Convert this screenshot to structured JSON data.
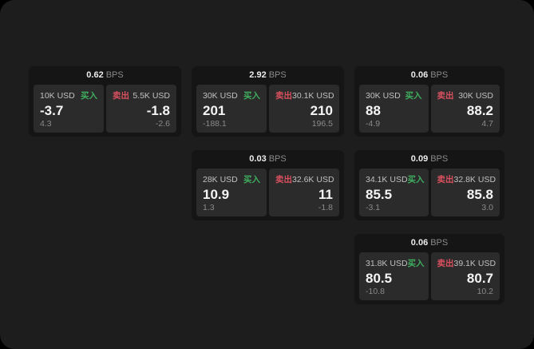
{
  "labels": {
    "bps": "BPS",
    "buy": "买入",
    "sell": "卖出"
  },
  "colors": {
    "background": "#000000",
    "surface": "#1d1d1d",
    "card_bg": "#151515",
    "panel_bg": "#2b2b2b",
    "buy_green": "#3fae5e",
    "sell_red": "#d9505f"
  },
  "cards": [
    {
      "bps": "0.62",
      "buy": {
        "size": "10K USD",
        "price": "-3.7",
        "delta": "4.3"
      },
      "sell": {
        "size": "5.5K USD",
        "price": "-1.8",
        "delta": "-2.6"
      }
    },
    {
      "bps": "2.92",
      "buy": {
        "size": "30K USD",
        "price": "201",
        "delta": "-188.1"
      },
      "sell": {
        "size": "30.1K USD",
        "price": "210",
        "delta": "196.5"
      }
    },
    {
      "bps": "0.06",
      "buy": {
        "size": "30K USD",
        "price": "88",
        "delta": "-4.9"
      },
      "sell": {
        "size": "30K USD",
        "price": "88.2",
        "delta": "4.7"
      }
    },
    {
      "bps": "0.03",
      "buy": {
        "size": "28K USD",
        "price": "10.9",
        "delta": "1.3"
      },
      "sell": {
        "size": "32.6K USD",
        "price": "11",
        "delta": "-1.8"
      }
    },
    {
      "bps": "0.09",
      "buy": {
        "size": "34.1K USD",
        "price": "85.5",
        "delta": "-3.1"
      },
      "sell": {
        "size": "32.8K USD",
        "price": "85.8",
        "delta": "3.0"
      }
    },
    {
      "bps": "0.06",
      "buy": {
        "size": "31.8K USD",
        "price": "80.5",
        "delta": "-10.8"
      },
      "sell": {
        "size": "39.1K USD",
        "price": "80.7",
        "delta": "10.2"
      }
    }
  ]
}
